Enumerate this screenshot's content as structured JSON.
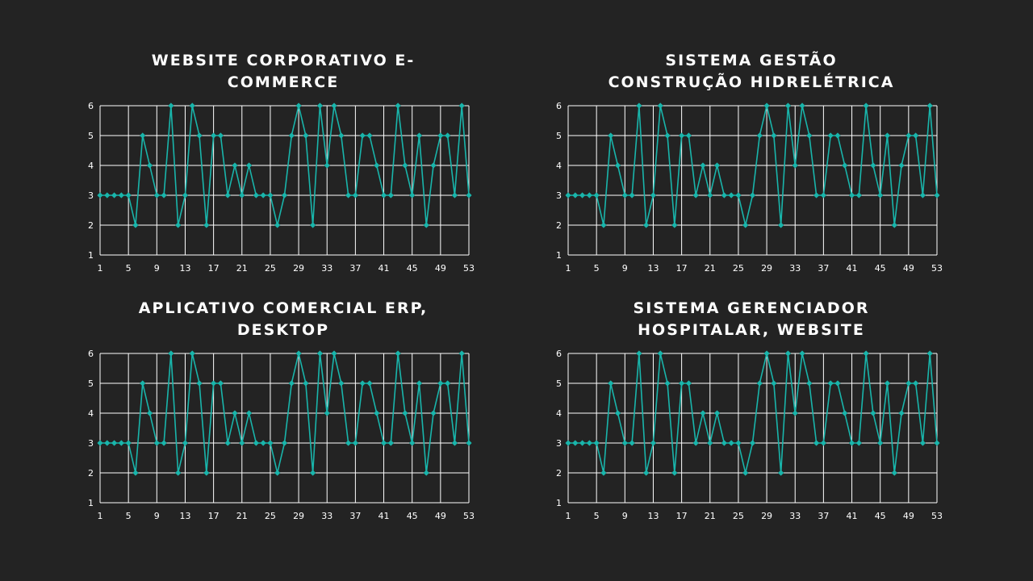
{
  "accent_color": "#19b5ab",
  "chart_data": [
    {
      "type": "line",
      "title": "WEBSITE CORPORATIVO E-COMMERCE",
      "xlabel": "",
      "ylabel": "",
      "x_range": [
        1,
        53
      ],
      "x_ticks": [
        1,
        5,
        9,
        13,
        17,
        21,
        25,
        29,
        33,
        37,
        41,
        45,
        49,
        53
      ],
      "ylim": [
        1,
        6
      ],
      "y_ticks": [
        1,
        2,
        3,
        4,
        5,
        6
      ],
      "grid": true,
      "series": [
        {
          "values": [
            3,
            3,
            3,
            3,
            3,
            2,
            5,
            4,
            3,
            3,
            6,
            2,
            3,
            6,
            5,
            2,
            5,
            5,
            3,
            4,
            3,
            4,
            3,
            3,
            3,
            2,
            3,
            5,
            6,
            5,
            2,
            6,
            4,
            6,
            5,
            3,
            3,
            5,
            5,
            4,
            3,
            3,
            6,
            4,
            3,
            5,
            2,
            4,
            5,
            5,
            3,
            6,
            3
          ]
        }
      ]
    },
    {
      "type": "line",
      "title": "SISTEMA GESTÃO CONSTRUÇÃO HIDRELÉTRICA",
      "xlabel": "",
      "ylabel": "",
      "x_range": [
        1,
        53
      ],
      "x_ticks": [
        1,
        5,
        9,
        13,
        17,
        21,
        25,
        29,
        33,
        37,
        41,
        45,
        49,
        53
      ],
      "ylim": [
        1,
        6
      ],
      "y_ticks": [
        1,
        2,
        3,
        4,
        5,
        6
      ],
      "grid": true,
      "series": [
        {
          "values": [
            3,
            3,
            3,
            3,
            3,
            2,
            5,
            4,
            3,
            3,
            6,
            2,
            3,
            6,
            5,
            2,
            5,
            5,
            3,
            4,
            3,
            4,
            3,
            3,
            3,
            2,
            3,
            5,
            6,
            5,
            2,
            6,
            4,
            6,
            5,
            3,
            3,
            5,
            5,
            4,
            3,
            3,
            6,
            4,
            3,
            5,
            2,
            4,
            5,
            5,
            3,
            6,
            3
          ]
        }
      ]
    },
    {
      "type": "line",
      "title": "APLICATIVO COMERCIAL ERP, DESKTOP",
      "xlabel": "",
      "ylabel": "",
      "x_range": [
        1,
        53
      ],
      "x_ticks": [
        1,
        5,
        9,
        13,
        17,
        21,
        25,
        29,
        33,
        37,
        41,
        45,
        49,
        53
      ],
      "ylim": [
        1,
        6
      ],
      "y_ticks": [
        1,
        2,
        3,
        4,
        5,
        6
      ],
      "grid": true,
      "series": [
        {
          "values": [
            3,
            3,
            3,
            3,
            3,
            2,
            5,
            4,
            3,
            3,
            6,
            2,
            3,
            6,
            5,
            2,
            5,
            5,
            3,
            4,
            3,
            4,
            3,
            3,
            3,
            2,
            3,
            5,
            6,
            5,
            2,
            6,
            4,
            6,
            5,
            3,
            3,
            5,
            5,
            4,
            3,
            3,
            6,
            4,
            3,
            5,
            2,
            4,
            5,
            5,
            3,
            6,
            3
          ]
        }
      ]
    },
    {
      "type": "line",
      "title": "SISTEMA GERENCIADOR HOSPITALAR, WEBSITE",
      "xlabel": "",
      "ylabel": "",
      "x_range": [
        1,
        53
      ],
      "x_ticks": [
        1,
        5,
        9,
        13,
        17,
        21,
        25,
        29,
        33,
        37,
        41,
        45,
        49,
        53
      ],
      "ylim": [
        1,
        6
      ],
      "y_ticks": [
        1,
        2,
        3,
        4,
        5,
        6
      ],
      "grid": true,
      "series": [
        {
          "values": [
            3,
            3,
            3,
            3,
            3,
            2,
            5,
            4,
            3,
            3,
            6,
            2,
            3,
            6,
            5,
            2,
            5,
            5,
            3,
            4,
            3,
            4,
            3,
            3,
            3,
            2,
            3,
            5,
            6,
            5,
            2,
            6,
            4,
            6,
            5,
            3,
            3,
            5,
            5,
            4,
            3,
            3,
            6,
            4,
            3,
            5,
            2,
            4,
            5,
            5,
            3,
            6,
            3
          ]
        }
      ]
    }
  ]
}
